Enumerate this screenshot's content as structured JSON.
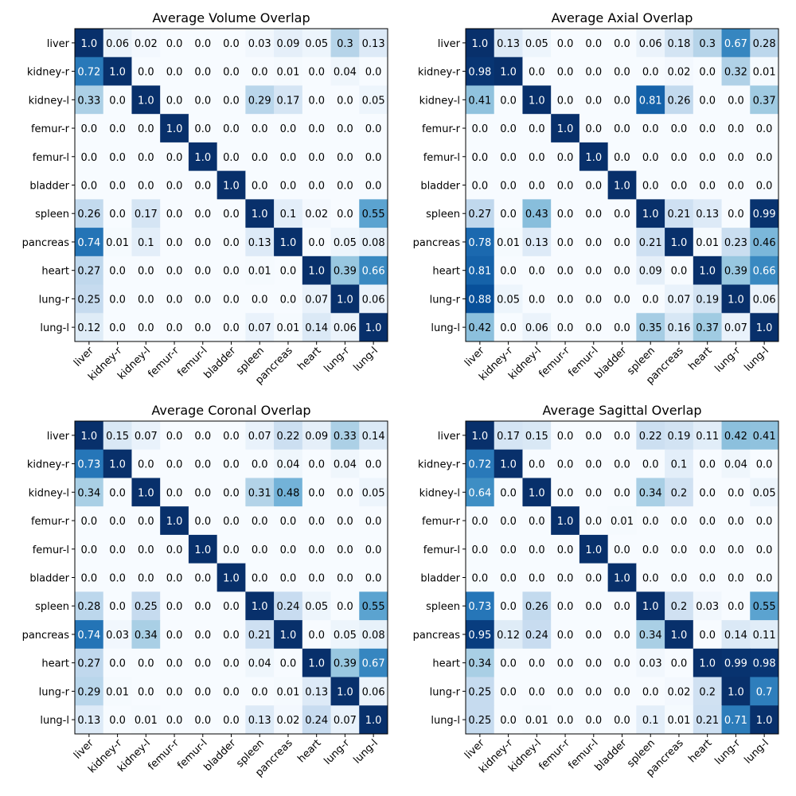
{
  "chart_data": [
    {
      "type": "heatmap",
      "title": "Average Volume Overlap",
      "colormap": "Blues",
      "vmin": 0,
      "vmax": 1,
      "rows": [
        "liver",
        "kidney-r",
        "kidney-l",
        "femur-r",
        "femur-l",
        "bladder",
        "spleen",
        "pancreas",
        "heart",
        "lung-r",
        "lung-l"
      ],
      "cols": [
        "liver",
        "kidney-r",
        "kidney-l",
        "femur-r",
        "femur-l",
        "bladder",
        "spleen",
        "pancreas",
        "heart",
        "lung-r",
        "lung-l"
      ],
      "values": [
        [
          "1.0",
          "0.06",
          "0.02",
          "0.0",
          "0.0",
          "0.0",
          "0.03",
          "0.09",
          "0.05",
          "0.3",
          "0.13"
        ],
        [
          "0.72",
          "1.0",
          "0.0",
          "0.0",
          "0.0",
          "0.0",
          "0.0",
          "0.01",
          "0.0",
          "0.04",
          "0.0"
        ],
        [
          "0.33",
          "0.0",
          "1.0",
          "0.0",
          "0.0",
          "0.0",
          "0.29",
          "0.17",
          "0.0",
          "0.0",
          "0.05"
        ],
        [
          "0.0",
          "0.0",
          "0.0",
          "1.0",
          "0.0",
          "0.0",
          "0.0",
          "0.0",
          "0.0",
          "0.0",
          "0.0"
        ],
        [
          "0.0",
          "0.0",
          "0.0",
          "0.0",
          "1.0",
          "0.0",
          "0.0",
          "0.0",
          "0.0",
          "0.0",
          "0.0"
        ],
        [
          "0.0",
          "0.0",
          "0.0",
          "0.0",
          "0.0",
          "1.0",
          "0.0",
          "0.0",
          "0.0",
          "0.0",
          "0.0"
        ],
        [
          "0.26",
          "0.0",
          "0.17",
          "0.0",
          "0.0",
          "0.0",
          "1.0",
          "0.1",
          "0.02",
          "0.0",
          "0.55"
        ],
        [
          "0.74",
          "0.01",
          "0.1",
          "0.0",
          "0.0",
          "0.0",
          "0.13",
          "1.0",
          "0.0",
          "0.05",
          "0.08"
        ],
        [
          "0.27",
          "0.0",
          "0.0",
          "0.0",
          "0.0",
          "0.0",
          "0.01",
          "0.0",
          "1.0",
          "0.39",
          "0.66"
        ],
        [
          "0.25",
          "0.0",
          "0.0",
          "0.0",
          "0.0",
          "0.0",
          "0.0",
          "0.0",
          "0.07",
          "1.0",
          "0.06"
        ],
        [
          "0.12",
          "0.0",
          "0.0",
          "0.0",
          "0.0",
          "0.0",
          "0.07",
          "0.01",
          "0.14",
          "0.06",
          "1.0"
        ]
      ]
    },
    {
      "type": "heatmap",
      "title": "Average Axial Overlap",
      "colormap": "Blues",
      "vmin": 0,
      "vmax": 1,
      "rows": [
        "liver",
        "kidney-r",
        "kidney-l",
        "femur-r",
        "femur-l",
        "bladder",
        "spleen",
        "pancreas",
        "heart",
        "lung-r",
        "lung-l"
      ],
      "cols": [
        "liver",
        "kidney-r",
        "kidney-l",
        "femur-r",
        "femur-l",
        "bladder",
        "spleen",
        "pancreas",
        "heart",
        "lung-r",
        "lung-l"
      ],
      "values": [
        [
          "1.0",
          "0.13",
          "0.05",
          "0.0",
          "0.0",
          "0.0",
          "0.06",
          "0.18",
          "0.3",
          "0.67",
          "0.28"
        ],
        [
          "0.98",
          "1.0",
          "0.0",
          "0.0",
          "0.0",
          "0.0",
          "0.0",
          "0.02",
          "0.0",
          "0.32",
          "0.01"
        ],
        [
          "0.41",
          "0.0",
          "1.0",
          "0.0",
          "0.0",
          "0.0",
          "0.81",
          "0.26",
          "0.0",
          "0.0",
          "0.37"
        ],
        [
          "0.0",
          "0.0",
          "0.0",
          "1.0",
          "0.0",
          "0.0",
          "0.0",
          "0.0",
          "0.0",
          "0.0",
          "0.0"
        ],
        [
          "0.0",
          "0.0",
          "0.0",
          "0.0",
          "1.0",
          "0.0",
          "0.0",
          "0.0",
          "0.0",
          "0.0",
          "0.0"
        ],
        [
          "0.0",
          "0.0",
          "0.0",
          "0.0",
          "0.0",
          "1.0",
          "0.0",
          "0.0",
          "0.0",
          "0.0",
          "0.0"
        ],
        [
          "0.27",
          "0.0",
          "0.43",
          "0.0",
          "0.0",
          "0.0",
          "1.0",
          "0.21",
          "0.13",
          "0.0",
          "0.99"
        ],
        [
          "0.78",
          "0.01",
          "0.13",
          "0.0",
          "0.0",
          "0.0",
          "0.21",
          "1.0",
          "0.01",
          "0.23",
          "0.46"
        ],
        [
          "0.81",
          "0.0",
          "0.0",
          "0.0",
          "0.0",
          "0.0",
          "0.09",
          "0.0",
          "1.0",
          "0.39",
          "0.66"
        ],
        [
          "0.88",
          "0.05",
          "0.0",
          "0.0",
          "0.0",
          "0.0",
          "0.0",
          "0.07",
          "0.19",
          "1.0",
          "0.06"
        ],
        [
          "0.42",
          "0.0",
          "0.06",
          "0.0",
          "0.0",
          "0.0",
          "0.35",
          "0.16",
          "0.37",
          "0.07",
          "1.0"
        ]
      ]
    },
    {
      "type": "heatmap",
      "title": "Average Coronal Overlap",
      "colormap": "Blues",
      "vmin": 0,
      "vmax": 1,
      "rows": [
        "liver",
        "kidney-r",
        "kidney-l",
        "femur-r",
        "femur-l",
        "bladder",
        "spleen",
        "pancreas",
        "heart",
        "lung-r",
        "lung-l"
      ],
      "cols": [
        "liver",
        "kidney-r",
        "kidney-l",
        "femur-r",
        "femur-l",
        "bladder",
        "spleen",
        "pancreas",
        "heart",
        "lung-r",
        "lung-l"
      ],
      "values": [
        [
          "1.0",
          "0.15",
          "0.07",
          "0.0",
          "0.0",
          "0.0",
          "0.07",
          "0.22",
          "0.09",
          "0.33",
          "0.14"
        ],
        [
          "0.73",
          "1.0",
          "0.0",
          "0.0",
          "0.0",
          "0.0",
          "0.0",
          "0.04",
          "0.0",
          "0.04",
          "0.0"
        ],
        [
          "0.34",
          "0.0",
          "1.0",
          "0.0",
          "0.0",
          "0.0",
          "0.31",
          "0.48",
          "0.0",
          "0.0",
          "0.05"
        ],
        [
          "0.0",
          "0.0",
          "0.0",
          "1.0",
          "0.0",
          "0.0",
          "0.0",
          "0.0",
          "0.0",
          "0.0",
          "0.0"
        ],
        [
          "0.0",
          "0.0",
          "0.0",
          "0.0",
          "1.0",
          "0.0",
          "0.0",
          "0.0",
          "0.0",
          "0.0",
          "0.0"
        ],
        [
          "0.0",
          "0.0",
          "0.0",
          "0.0",
          "0.0",
          "1.0",
          "0.0",
          "0.0",
          "0.0",
          "0.0",
          "0.0"
        ],
        [
          "0.28",
          "0.0",
          "0.25",
          "0.0",
          "0.0",
          "0.0",
          "1.0",
          "0.24",
          "0.05",
          "0.0",
          "0.55"
        ],
        [
          "0.74",
          "0.03",
          "0.34",
          "0.0",
          "0.0",
          "0.0",
          "0.21",
          "1.0",
          "0.0",
          "0.05",
          "0.08"
        ],
        [
          "0.27",
          "0.0",
          "0.0",
          "0.0",
          "0.0",
          "0.0",
          "0.04",
          "0.0",
          "1.0",
          "0.39",
          "0.67"
        ],
        [
          "0.29",
          "0.01",
          "0.0",
          "0.0",
          "0.0",
          "0.0",
          "0.0",
          "0.01",
          "0.13",
          "1.0",
          "0.06"
        ],
        [
          "0.13",
          "0.0",
          "0.01",
          "0.0",
          "0.0",
          "0.0",
          "0.13",
          "0.02",
          "0.24",
          "0.07",
          "1.0"
        ]
      ]
    },
    {
      "type": "heatmap",
      "title": "Average Sagittal Overlap",
      "colormap": "Blues",
      "vmin": 0,
      "vmax": 1,
      "rows": [
        "liver",
        "kidney-r",
        "kidney-l",
        "femur-r",
        "femur-l",
        "bladder",
        "spleen",
        "pancreas",
        "heart",
        "lung-r",
        "lung-l"
      ],
      "cols": [
        "liver",
        "kidney-r",
        "kidney-l",
        "femur-r",
        "femur-l",
        "bladder",
        "spleen",
        "pancreas",
        "heart",
        "lung-r",
        "lung-l"
      ],
      "values": [
        [
          "1.0",
          "0.17",
          "0.15",
          "0.0",
          "0.0",
          "0.0",
          "0.22",
          "0.19",
          "0.11",
          "0.42",
          "0.41"
        ],
        [
          "0.72",
          "1.0",
          "0.0",
          "0.0",
          "0.0",
          "0.0",
          "0.0",
          "0.1",
          "0.0",
          "0.04",
          "0.0"
        ],
        [
          "0.64",
          "0.0",
          "1.0",
          "0.0",
          "0.0",
          "0.0",
          "0.34",
          "0.2",
          "0.0",
          "0.0",
          "0.05"
        ],
        [
          "0.0",
          "0.0",
          "0.0",
          "1.0",
          "0.0",
          "0.01",
          "0.0",
          "0.0",
          "0.0",
          "0.0",
          "0.0"
        ],
        [
          "0.0",
          "0.0",
          "0.0",
          "0.0",
          "1.0",
          "0.0",
          "0.0",
          "0.0",
          "0.0",
          "0.0",
          "0.0"
        ],
        [
          "0.0",
          "0.0",
          "0.0",
          "0.0",
          "0.0",
          "1.0",
          "0.0",
          "0.0",
          "0.0",
          "0.0",
          "0.0"
        ],
        [
          "0.73",
          "0.0",
          "0.26",
          "0.0",
          "0.0",
          "0.0",
          "1.0",
          "0.2",
          "0.03",
          "0.0",
          "0.55"
        ],
        [
          "0.95",
          "0.12",
          "0.24",
          "0.0",
          "0.0",
          "0.0",
          "0.34",
          "1.0",
          "0.0",
          "0.14",
          "0.11"
        ],
        [
          "0.34",
          "0.0",
          "0.0",
          "0.0",
          "0.0",
          "0.0",
          "0.03",
          "0.0",
          "1.0",
          "0.99",
          "0.98"
        ],
        [
          "0.25",
          "0.0",
          "0.0",
          "0.0",
          "0.0",
          "0.0",
          "0.0",
          "0.02",
          "0.2",
          "1.0",
          "0.7"
        ],
        [
          "0.25",
          "0.0",
          "0.01",
          "0.0",
          "0.0",
          "0.0",
          "0.1",
          "0.01",
          "0.21",
          "0.71",
          "1.0"
        ]
      ]
    }
  ]
}
